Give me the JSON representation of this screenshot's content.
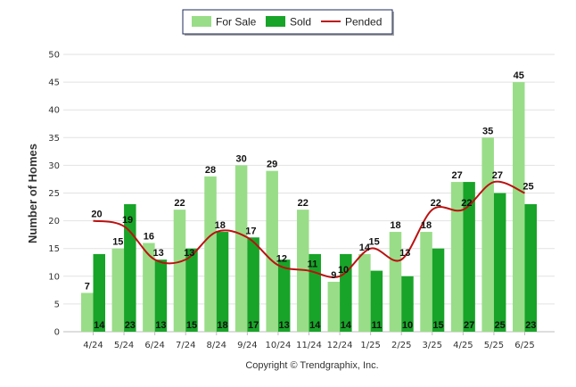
{
  "chart_data": {
    "type": "bar",
    "categories": [
      "4/24",
      "5/24",
      "6/24",
      "7/24",
      "8/24",
      "9/24",
      "10/24",
      "11/24",
      "12/24",
      "1/25",
      "2/25",
      "3/25",
      "4/25",
      "5/25",
      "6/25"
    ],
    "series": [
      {
        "name": "For Sale",
        "kind": "bar",
        "color": "#99dd88",
        "values": [
          7,
          15,
          16,
          22,
          28,
          30,
          29,
          22,
          9,
          14,
          18,
          18,
          27,
          35,
          45
        ]
      },
      {
        "name": "Sold",
        "kind": "bar",
        "color": "#18a428",
        "values": [
          14,
          23,
          13,
          15,
          18,
          17,
          13,
          14,
          14,
          11,
          10,
          15,
          27,
          25,
          23
        ]
      },
      {
        "name": "Pended",
        "kind": "line",
        "color": "#bb1111",
        "values": [
          20,
          19,
          13,
          13,
          18,
          17,
          12,
          11,
          10,
          15,
          13,
          22,
          22,
          27,
          25
        ]
      }
    ],
    "ylabel": "Number of Homes",
    "xlabel": "",
    "ylim": [
      0,
      50
    ],
    "yticks": [
      0,
      5,
      10,
      15,
      20,
      25,
      30,
      35,
      40,
      45,
      50
    ],
    "grid": true,
    "legend_position": "top-center"
  },
  "footer": "Copyright © Trendgraphix, Inc."
}
